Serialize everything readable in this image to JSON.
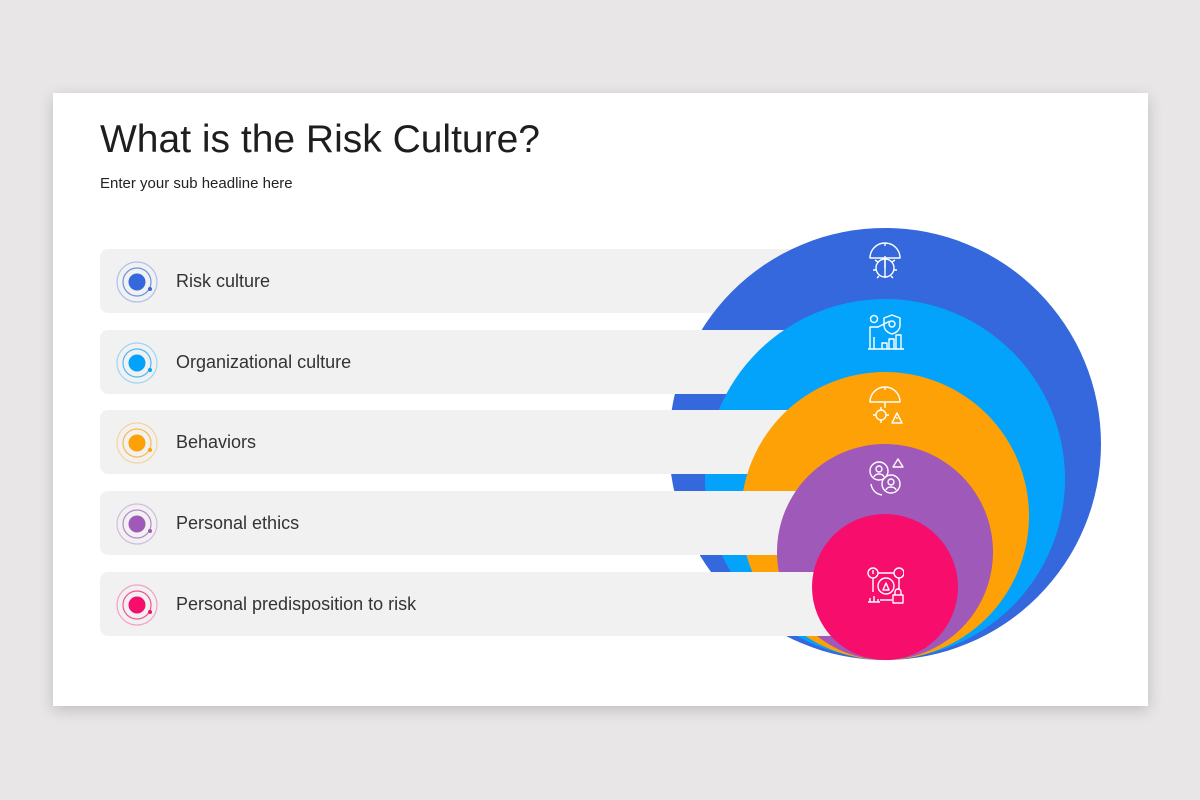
{
  "title": "What is the Risk Culture?",
  "subtitle": "Enter your sub headline here",
  "items": [
    {
      "label": "Risk culture",
      "color": "#3567dd",
      "icon": "umbrella-gear-icon"
    },
    {
      "label": "Organizational culture",
      "color": "#04a3fb",
      "icon": "person-shield-chart-icon"
    },
    {
      "label": "Behaviors",
      "color": "#fda106",
      "icon": "umbrella-gear-warning-icon"
    },
    {
      "label": "Personal ethics",
      "color": "#9f59b8",
      "icon": "gears-people-warning-icon"
    },
    {
      "label": "Personal predisposition to risk",
      "color": "#f70d6c",
      "icon": "risk-network-icon"
    }
  ]
}
